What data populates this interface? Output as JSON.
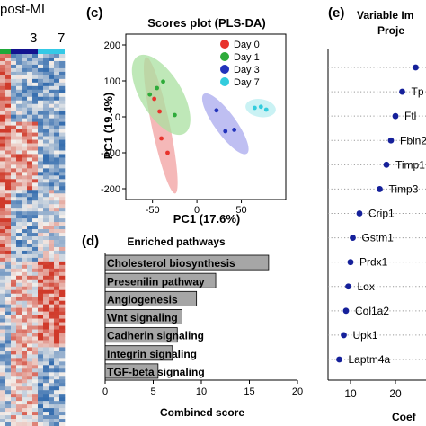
{
  "header_fragment": "post-MI",
  "heatmap_day_labels": [
    "3",
    "7"
  ],
  "heatmap_bar_colors": [
    "#1fa83a",
    "#13138f",
    "#35c9e6"
  ],
  "panel_labels": {
    "c": "(c)",
    "d": "(d)",
    "e": "(e)"
  },
  "chart_data": [
    {
      "panel": "c",
      "type": "scatter",
      "title": "Scores plot (PLS-DA)",
      "xlabel": "PC1 (17.6%)",
      "ylabel": "PC1 (19.4%)",
      "xlim": [
        -80,
        100
      ],
      "ylim": [
        -230,
        230
      ],
      "x_ticks": [
        -50,
        0,
        50
      ],
      "y_ticks": [
        200,
        100,
        0,
        -100,
        -200
      ],
      "legend_position": "top-right",
      "series": [
        {
          "name": "Day 0",
          "color": "#e8332c",
          "ellipse_color": "#f2a0a0",
          "points": [
            [
              -42,
              15
            ],
            [
              -40,
              -60
            ],
            [
              -33,
              -100
            ],
            [
              -48,
              50
            ]
          ]
        },
        {
          "name": "Day 1",
          "color": "#2eab3a",
          "ellipse_color": "#a9e0a0",
          "points": [
            [
              -45,
              80
            ],
            [
              -38,
              98
            ],
            [
              -25,
              5
            ],
            [
              -53,
              62
            ]
          ]
        },
        {
          "name": "Day 3",
          "color": "#2233bb",
          "ellipse_color": "#a9a9ee",
          "points": [
            [
              22,
              18
            ],
            [
              32,
              -40
            ],
            [
              42,
              -36
            ]
          ]
        },
        {
          "name": "Day 7",
          "color": "#33ccdd",
          "ellipse_color": "#b8eef0",
          "points": [
            [
              65,
              25
            ],
            [
              72,
              28
            ],
            [
              78,
              20
            ]
          ]
        }
      ]
    },
    {
      "panel": "d",
      "type": "bar",
      "orientation": "horizontal",
      "title": "Enriched pathways",
      "xlabel": "Combined score",
      "xlim": [
        0,
        20
      ],
      "x_ticks": [
        0,
        5,
        10,
        15,
        20
      ],
      "bar_color": "#a6a6a6",
      "categories": [
        "Cholesterol biosynthesis",
        "Presenilin pathway",
        "Angiogenesis",
        "Wnt signaling",
        "Cadherin signaling",
        "Integrin signaling",
        "TGF-beta signaling"
      ],
      "values": [
        17,
        11.5,
        9.5,
        8,
        7.5,
        7,
        5.5
      ]
    },
    {
      "panel": "e",
      "type": "scatter",
      "title_lines": [
        "Variable Im",
        "Proje"
      ],
      "xlabel": "Coef",
      "x_ticks": [
        10,
        20
      ],
      "xlim": [
        5,
        28
      ],
      "point_color": "#15209a",
      "labels": [
        "",
        "Tp",
        "Ftl",
        "Fbln2",
        "Timp1",
        "Timp3",
        "Crip1",
        "Gstm1",
        "Prdx1",
        "Lox",
        "Col1a2",
        "Upk1",
        "Laptm4a"
      ],
      "values": [
        24.5,
        21.5,
        20,
        19,
        18,
        16.5,
        12,
        10.5,
        10,
        9.5,
        9,
        8.5,
        7.5
      ]
    }
  ]
}
